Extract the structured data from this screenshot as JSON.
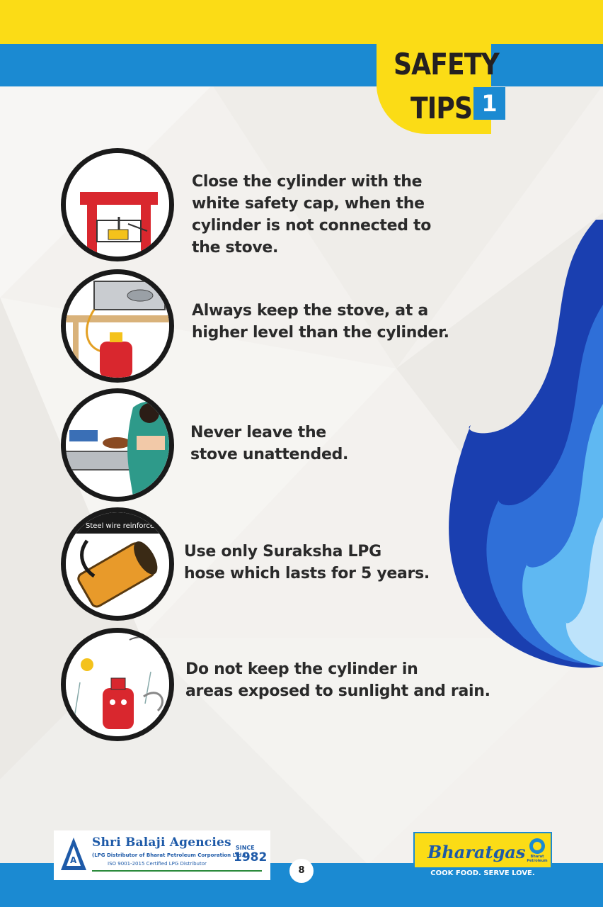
{
  "header": {
    "title_line1": "SAFETY",
    "title_line2": "TIPS",
    "title_number": "1"
  },
  "tips": [
    {
      "text": "Close the cylinder with the\nwhite safety cap, when the\ncylinder is not connected to\nthe stove."
    },
    {
      "text": "Always keep the stove, at a\nhigher level than the cylinder."
    },
    {
      "text": "Never leave the\nstove unattended."
    },
    {
      "text": "Use only Suraksha LPG\nhose which lasts for 5 years.",
      "image_caption": "Steel wire reinforced"
    },
    {
      "text": "Do not keep the cylinder in\nareas exposed to sunlight and rain."
    }
  ],
  "footer": {
    "page_number": "8",
    "agency": {
      "name": "Shri Balaji Agencies",
      "subtitle": "(LPG Distributor of Bharat Petroleum Corporation Ltd.)",
      "iso": "ISO 9001-2015 Certified LPG Distributor",
      "since_label": "SINCE",
      "since_year": "1982"
    },
    "brand": {
      "name": "Bharatgas",
      "tagline": "COOK FOOD. SERVE LOVE.",
      "logo_text": "Bharat Petroleum"
    }
  },
  "colors": {
    "yellow": "#fbdc16",
    "blue": "#1b8ad2",
    "flame_dark": "#1a3fb0",
    "flame_light": "#5fb8f2"
  }
}
